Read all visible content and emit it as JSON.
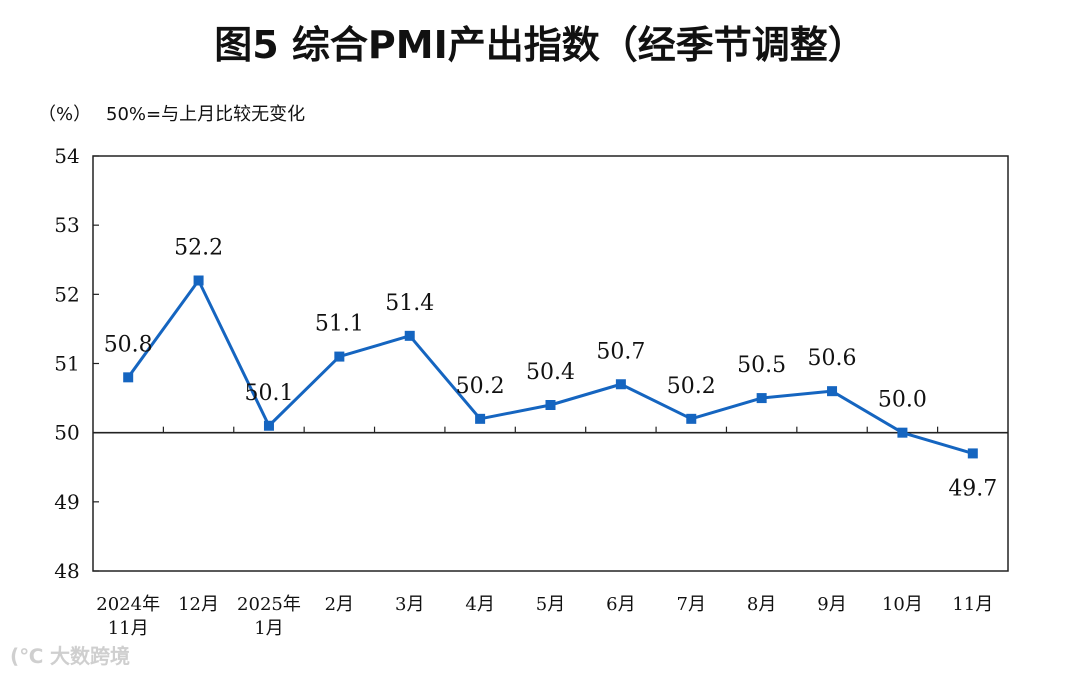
{
  "chart_data": {
    "type": "line",
    "title": "图5  综合PMI产出指数（经季节调整）",
    "ylabel": "（%）",
    "note": "50%=与上月比较无变化",
    "ylim": [
      48,
      54
    ],
    "yticks": [
      "48",
      "49",
      "50",
      "51",
      "52",
      "53",
      "54"
    ],
    "reference_line": 50,
    "categories": [
      [
        "2024年",
        "11月"
      ],
      [
        "12月"
      ],
      [
        "2025年",
        "1月"
      ],
      [
        "2月"
      ],
      [
        "3月"
      ],
      [
        "4月"
      ],
      [
        "5月"
      ],
      [
        "6月"
      ],
      [
        "7月"
      ],
      [
        "8月"
      ],
      [
        "9月"
      ],
      [
        "10月"
      ],
      [
        "11月"
      ]
    ],
    "series": [
      {
        "name": "综合PMI产出指数",
        "color": "#1565C0",
        "values": [
          50.8,
          52.2,
          50.1,
          51.1,
          51.4,
          50.2,
          50.4,
          50.7,
          50.2,
          50.5,
          50.6,
          50.0,
          49.7
        ],
        "labels": [
          "50.8",
          "52.2",
          "50.1",
          "51.1",
          "51.4",
          "50.2",
          "50.4",
          "50.7",
          "50.2",
          "50.5",
          "50.6",
          "50.0",
          "49.7"
        ]
      }
    ]
  },
  "watermark": "大数跨境"
}
